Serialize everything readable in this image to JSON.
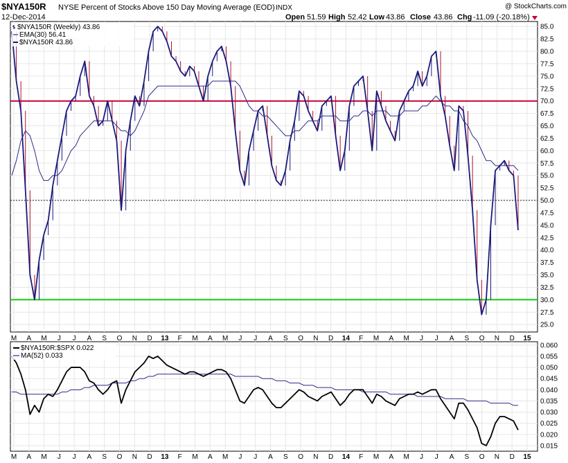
{
  "header": {
    "symbol": "$NYA150R",
    "description": "NYSE Percent of Stocks Above 150 Day Moving Average (EOD)",
    "exchange": "INDX",
    "watermark": "@ StockCharts.com",
    "date": "12-Dec-2014",
    "open_label": "Open",
    "open": "51.59",
    "high_label": "High",
    "high": "52.42",
    "low_label": "Low",
    "low": "43.86",
    "close_label": "Close",
    "close": "43.86",
    "chg_label": "Chg",
    "chg": "-11.09 (-20.18%)"
  },
  "colors": {
    "price": "#1a1a7a",
    "down_wick": "#b01030",
    "ema": "#2a2a8a",
    "overbought": "#cc0033",
    "oversold": "#11cc11",
    "ratio": "#000000",
    "ma": "#2a2a8a"
  },
  "chart_data": [
    {
      "type": "line",
      "title": "$NYA150R NYSE Percent of Stocks Above 150 Day Moving Average (EOD)",
      "legend": [
        {
          "label": "$NYA150R (Weekly) 43.86"
        },
        {
          "label": "EMA(30) 56.41"
        },
        {
          "label": "$NYA150R 43.86"
        }
      ],
      "y_ticks": [
        "85.0",
        "82.5",
        "80.0",
        "77.5",
        "75.0",
        "72.5",
        "70.0",
        "67.5",
        "65.0",
        "62.5",
        "60.0",
        "57.5",
        "55.0",
        "52.5",
        "50.0",
        "47.5",
        "45.0",
        "42.5",
        "40.0",
        "37.5",
        "35.0",
        "32.5",
        "30.0",
        "27.5",
        "25.0"
      ],
      "ylim": [
        23.5,
        86
      ],
      "reference_lines": [
        70,
        50,
        30
      ],
      "x_labels": [
        "M",
        "A",
        "M",
        "J",
        "J",
        "A",
        "S",
        "O",
        "N",
        "D",
        "13",
        "F",
        "M",
        "A",
        "M",
        "J",
        "J",
        "A",
        "S",
        "O",
        "N",
        "D",
        "14",
        "F",
        "M",
        "A",
        "M",
        "J",
        "J",
        "A",
        "S",
        "O",
        "N",
        "D",
        "15"
      ],
      "series": [
        {
          "values": [
            84,
            74,
            68,
            52,
            35,
            30,
            38,
            43,
            46,
            53,
            58,
            63,
            68,
            70,
            71,
            75,
            78,
            71,
            69,
            65,
            66,
            70,
            66,
            62,
            48,
            60,
            66,
            71,
            69,
            74,
            80,
            84,
            85,
            84,
            82,
            79,
            78,
            76,
            75,
            77,
            76,
            73,
            70,
            75,
            78,
            80,
            81,
            78,
            73,
            64,
            56,
            53,
            60,
            64,
            68,
            69,
            63,
            57,
            54,
            53,
            56,
            62,
            66,
            72,
            71,
            68,
            66,
            64,
            69,
            70,
            71,
            63,
            56,
            60,
            69,
            73,
            74,
            75,
            68,
            60,
            72,
            69,
            66,
            64,
            62,
            68,
            70,
            72,
            73,
            76,
            73,
            75,
            79,
            80,
            71,
            67,
            61,
            56,
            69,
            68,
            59,
            48,
            34,
            27,
            30,
            45,
            56,
            57,
            58,
            56,
            55,
            44
          ]
        },
        {
          "values": [
            55,
            58,
            62,
            64,
            63,
            60,
            56,
            54,
            54,
            55,
            55,
            56,
            58,
            60,
            61,
            63,
            64,
            65,
            66,
            66,
            66,
            66,
            66,
            65,
            64,
            64,
            63,
            64,
            66,
            68,
            71,
            72,
            73,
            73,
            73,
            73,
            73,
            73,
            73,
            73,
            73,
            73,
            73,
            73,
            74,
            74,
            74,
            74,
            74,
            74,
            73,
            71,
            69,
            68,
            68,
            67,
            67,
            66,
            65,
            64,
            63,
            63,
            64,
            64,
            65,
            66,
            66,
            66,
            67,
            67,
            67,
            67,
            66,
            66,
            66,
            67,
            67,
            68,
            68,
            67,
            68,
            68,
            68,
            67,
            67,
            67,
            68,
            68,
            68,
            68,
            69,
            69,
            70,
            71,
            70,
            69,
            69,
            68,
            68,
            66,
            65,
            63,
            62,
            60,
            58,
            58,
            57,
            57,
            57,
            57,
            57,
            56
          ]
        }
      ]
    },
    {
      "type": "line",
      "legend": [
        {
          "label": "$NYA150R:$SPX 0.022"
        },
        {
          "label": "MA(52) 0.033"
        }
      ],
      "y_ticks": [
        "0.060",
        "0.055",
        "0.050",
        "0.045",
        "0.040",
        "0.035",
        "0.030",
        "0.025",
        "0.020",
        "0.015"
      ],
      "ylim": [
        0.0125,
        0.0615
      ],
      "x_labels": [
        "M",
        "A",
        "M",
        "J",
        "J",
        "A",
        "S",
        "O",
        "N",
        "D",
        "13",
        "F",
        "M",
        "A",
        "M",
        "J",
        "J",
        "A",
        "S",
        "O",
        "N",
        "D",
        "14",
        "F",
        "M",
        "A",
        "M",
        "J",
        "J",
        "A",
        "S",
        "O",
        "N",
        "D",
        "15"
      ],
      "series": [
        {
          "values": [
            0.055,
            0.052,
            0.047,
            0.04,
            0.029,
            0.033,
            0.03,
            0.036,
            0.038,
            0.037,
            0.04,
            0.044,
            0.048,
            0.05,
            0.05,
            0.05,
            0.048,
            0.044,
            0.043,
            0.04,
            0.038,
            0.04,
            0.043,
            0.044,
            0.034,
            0.04,
            0.044,
            0.048,
            0.05,
            0.052,
            0.055,
            0.054,
            0.055,
            0.053,
            0.051,
            0.05,
            0.049,
            0.048,
            0.047,
            0.048,
            0.048,
            0.047,
            0.046,
            0.047,
            0.048,
            0.049,
            0.049,
            0.048,
            0.045,
            0.04,
            0.035,
            0.034,
            0.037,
            0.04,
            0.041,
            0.04,
            0.037,
            0.034,
            0.032,
            0.032,
            0.034,
            0.036,
            0.038,
            0.04,
            0.039,
            0.037,
            0.036,
            0.035,
            0.037,
            0.038,
            0.039,
            0.036,
            0.033,
            0.035,
            0.038,
            0.04,
            0.04,
            0.04,
            0.037,
            0.034,
            0.038,
            0.037,
            0.035,
            0.034,
            0.033,
            0.036,
            0.037,
            0.038,
            0.038,
            0.039,
            0.038,
            0.039,
            0.04,
            0.04,
            0.036,
            0.033,
            0.03,
            0.027,
            0.034,
            0.034,
            0.031,
            0.027,
            0.023,
            0.016,
            0.015,
            0.019,
            0.025,
            0.028,
            0.028,
            0.027,
            0.026,
            0.022
          ]
        },
        {
          "values": [
            0.039,
            0.039,
            0.038,
            0.038,
            0.038,
            0.038,
            0.038,
            0.038,
            0.038,
            0.038,
            0.038,
            0.039,
            0.039,
            0.04,
            0.04,
            0.04,
            0.041,
            0.041,
            0.042,
            0.042,
            0.042,
            0.042,
            0.043,
            0.043,
            0.043,
            0.043,
            0.044,
            0.044,
            0.045,
            0.045,
            0.046,
            0.046,
            0.047,
            0.047,
            0.047,
            0.047,
            0.047,
            0.047,
            0.047,
            0.047,
            0.047,
            0.047,
            0.047,
            0.047,
            0.047,
            0.047,
            0.047,
            0.047,
            0.047,
            0.046,
            0.046,
            0.046,
            0.046,
            0.046,
            0.046,
            0.045,
            0.045,
            0.045,
            0.044,
            0.044,
            0.044,
            0.043,
            0.043,
            0.043,
            0.042,
            0.042,
            0.042,
            0.041,
            0.041,
            0.041,
            0.041,
            0.04,
            0.04,
            0.04,
            0.04,
            0.04,
            0.04,
            0.039,
            0.039,
            0.039,
            0.039,
            0.039,
            0.039,
            0.038,
            0.038,
            0.038,
            0.038,
            0.038,
            0.038,
            0.037,
            0.037,
            0.037,
            0.037,
            0.037,
            0.037,
            0.036,
            0.036,
            0.036,
            0.036,
            0.036,
            0.035,
            0.035,
            0.035,
            0.035,
            0.035,
            0.034,
            0.034,
            0.034,
            0.034,
            0.034,
            0.033,
            0.033
          ]
        }
      ]
    }
  ]
}
